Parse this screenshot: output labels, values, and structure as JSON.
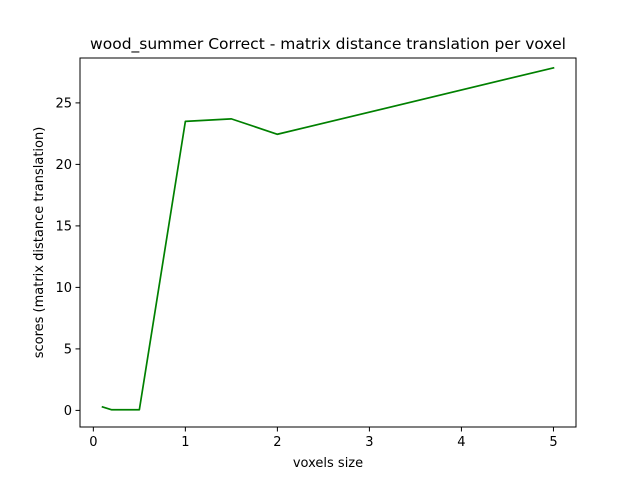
{
  "chart_data": {
    "type": "line",
    "title": "wood_summer Correct - matrix distance translation per voxel",
    "xlabel": "voxels size",
    "ylabel": "scores (matrix distance translation)",
    "xlim": [
      -0.145,
      5.245
    ],
    "ylim": [
      -1.35,
      28.65
    ],
    "xticks": [
      0,
      1,
      2,
      3,
      4,
      5
    ],
    "yticks": [
      0,
      5,
      10,
      15,
      20,
      25
    ],
    "grid": false,
    "legend": "none",
    "series": [
      {
        "color": "#008000",
        "x": [
          0.1,
          0.2,
          0.5,
          1.0,
          1.5,
          2.0,
          5.0
        ],
        "y": [
          0.28,
          0.05,
          0.05,
          23.5,
          23.7,
          22.45,
          27.85
        ]
      }
    ]
  }
}
